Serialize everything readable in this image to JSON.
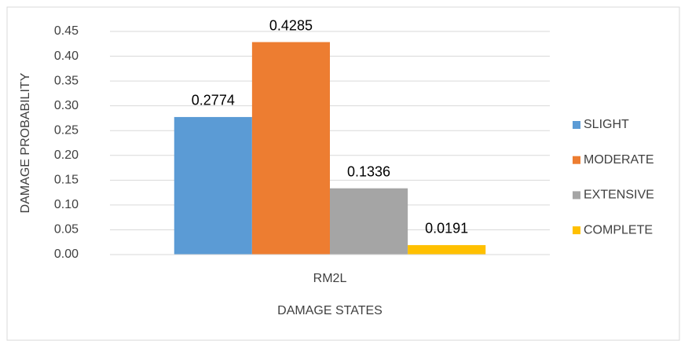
{
  "chart_data": {
    "type": "bar",
    "categories": [
      "RM2L"
    ],
    "series": [
      {
        "name": "SLIGHT",
        "color": "#5b9bd5",
        "values": [
          0.2774
        ]
      },
      {
        "name": "MODERATE",
        "color": "#ed7d31",
        "values": [
          0.4285
        ]
      },
      {
        "name": "EXTENSIVE",
        "color": "#a5a5a5",
        "values": [
          0.1336
        ]
      },
      {
        "name": "COMPLETE",
        "color": "#ffc000",
        "values": [
          0.0191
        ]
      }
    ],
    "x_label": "DAMAGE STATES",
    "y_label": "DAMAGE PROBABILITY",
    "ylim": [
      0,
      0.45
    ],
    "yticks": [
      {
        "value": 0,
        "label": "0.00"
      },
      0.05,
      {
        "value": 0.1,
        "label": "0.10"
      },
      0.15,
      {
        "value": 0.2,
        "label": "0.20"
      },
      0.25,
      {
        "value": 0.3,
        "label": "0.30"
      },
      0.35,
      {
        "value": 0.4,
        "label": "0.40"
      },
      0.45
    ],
    "grid": true,
    "legend": "right"
  }
}
